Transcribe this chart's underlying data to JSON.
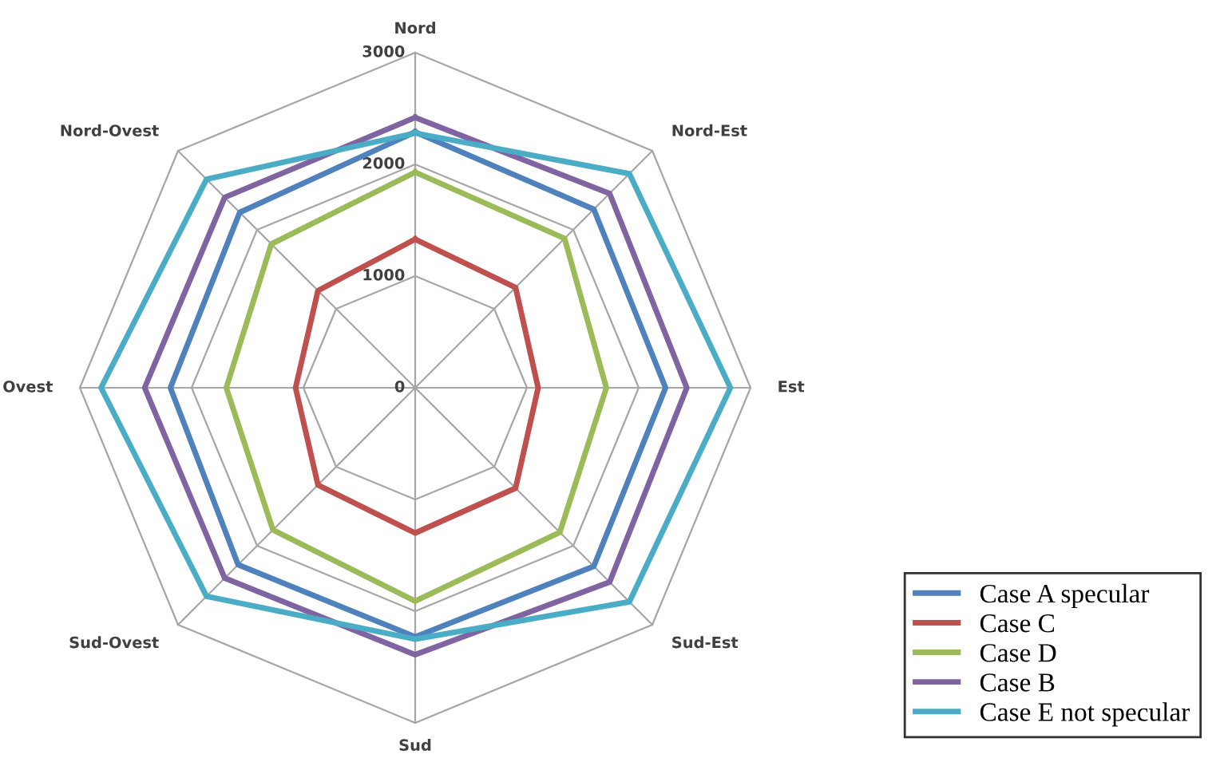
{
  "chart_data": {
    "type": "radar",
    "categories": [
      "Nord",
      "Nord-Est",
      "Est",
      "Sud-Est",
      "Sud",
      "Sud-Ovest",
      "Ovest",
      "Nord-Ovest"
    ],
    "ylim": [
      0,
      3000
    ],
    "yticks": [
      0,
      1000,
      2000,
      3000
    ],
    "legend": "bottom right",
    "series": [
      {
        "name": "Case A specular",
        "color": "#4f81bd",
        "values": [
          2290,
          2260,
          2240,
          2260,
          2230,
          2240,
          2190,
          2220
        ]
      },
      {
        "name": "Case C",
        "color": "#c0504d",
        "values": [
          1330,
          1270,
          1100,
          1270,
          1300,
          1230,
          1070,
          1230
        ]
      },
      {
        "name": "Case D",
        "color": "#9bbb59",
        "values": [
          1930,
          1890,
          1710,
          1830,
          1910,
          1800,
          1690,
          1820
        ]
      },
      {
        "name": "Case B",
        "color": "#8064a2",
        "values": [
          2420,
          2460,
          2430,
          2460,
          2390,
          2410,
          2420,
          2410
        ]
      },
      {
        "name": "Case E not specular",
        "color": "#4bacc6",
        "values": [
          2280,
          2710,
          2820,
          2710,
          2250,
          2640,
          2810,
          2640
        ]
      }
    ]
  }
}
